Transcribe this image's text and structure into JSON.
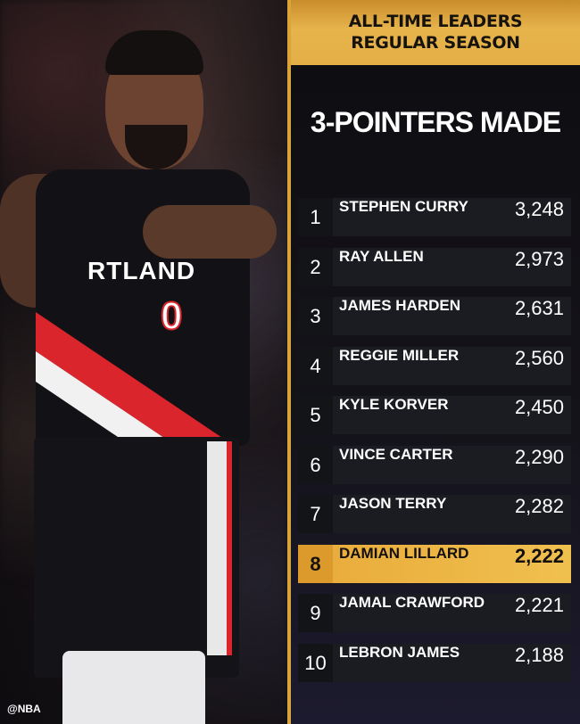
{
  "header": {
    "line1": "ALL-TIME LEADERS",
    "line2": "REGULAR SEASON"
  },
  "title": "3-POINTERS MADE",
  "photo": {
    "jersey_text": "RTLAND",
    "jersey_number": "0",
    "watermark": "@NBA"
  },
  "colors": {
    "gold": "#e7b44c",
    "highlight": "#f0c04f",
    "row_bg": "#1b1c22",
    "jersey_red": "#d9252b"
  },
  "leaders": [
    {
      "rank": "1",
      "name": "STEPHEN CURRY",
      "value": "3,248"
    },
    {
      "rank": "2",
      "name": "RAY ALLEN",
      "value": "2,973"
    },
    {
      "rank": "3",
      "name": "JAMES HARDEN",
      "value": "2,631"
    },
    {
      "rank": "4",
      "name": "REGGIE MILLER",
      "value": "2,560"
    },
    {
      "rank": "5",
      "name": "KYLE KORVER",
      "value": "2,450"
    },
    {
      "rank": "6",
      "name": "VINCE CARTER",
      "value": "2,290"
    },
    {
      "rank": "7",
      "name": "JASON TERRY",
      "value": "2,282"
    },
    {
      "rank": "8",
      "name": "DAMIAN LILLARD",
      "value": "2,222",
      "highlighted": true
    },
    {
      "rank": "9",
      "name": "JAMAL CRAWFORD",
      "value": "2,221"
    },
    {
      "rank": "10",
      "name": "LEBRON JAMES",
      "value": "2,188"
    }
  ]
}
